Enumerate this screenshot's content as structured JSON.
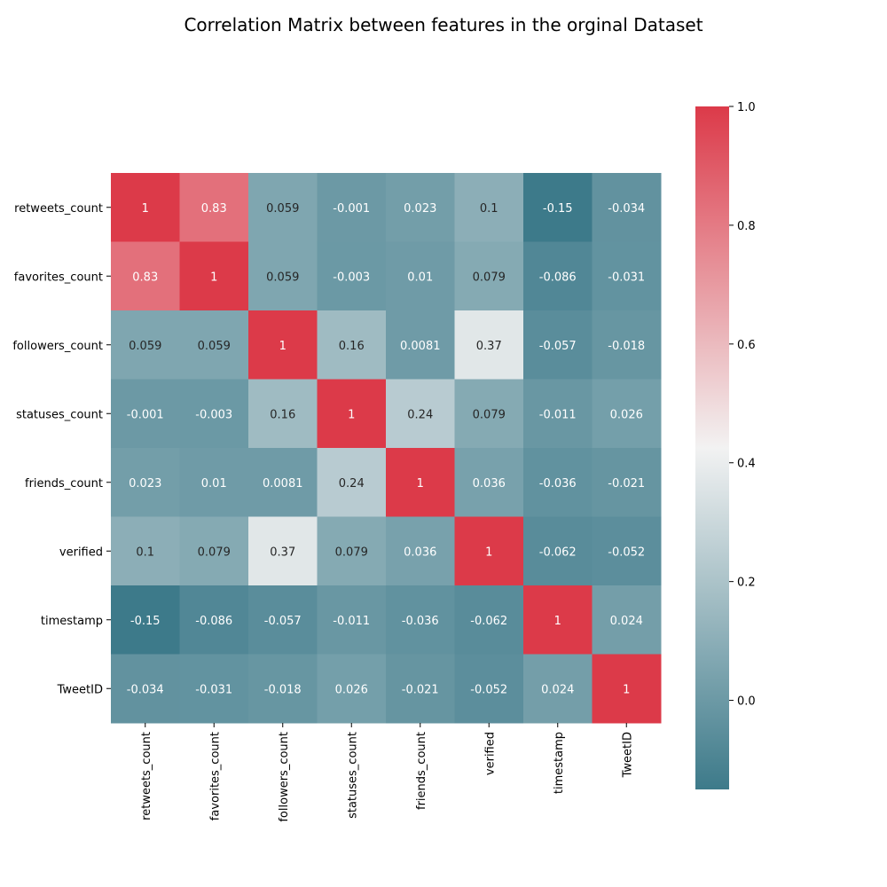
{
  "chart_data": {
    "type": "heatmap",
    "title": "Correlation Matrix between features in the orginal Dataset",
    "row_labels": [
      "retweets_count",
      "favorites_count",
      "followers_count",
      "statuses_count",
      "friends_count",
      "verified",
      "timestamp",
      "TweetID"
    ],
    "col_labels": [
      "retweets_count",
      "favorites_count",
      "followers_count",
      "statuses_count",
      "friends_count",
      "verified",
      "timestamp",
      "TweetID"
    ],
    "values": [
      [
        1,
        0.83,
        0.059,
        -0.001,
        0.023,
        0.1,
        -0.15,
        -0.034
      ],
      [
        0.83,
        1,
        0.059,
        -0.003,
        0.01,
        0.079,
        -0.086,
        -0.031
      ],
      [
        0.059,
        0.059,
        1,
        0.16,
        0.0081,
        0.37,
        -0.057,
        -0.018
      ],
      [
        -0.001,
        -0.003,
        0.16,
        1,
        0.24,
        0.079,
        -0.011,
        0.026
      ],
      [
        0.023,
        0.01,
        0.0081,
        0.24,
        1,
        0.036,
        -0.036,
        -0.021
      ],
      [
        0.1,
        0.079,
        0.37,
        0.079,
        0.036,
        1,
        -0.062,
        -0.052
      ],
      [
        -0.15,
        -0.086,
        -0.057,
        -0.011,
        -0.036,
        -0.062,
        1,
        0.024
      ],
      [
        -0.034,
        -0.031,
        -0.018,
        0.026,
        -0.021,
        -0.052,
        0.024,
        1
      ]
    ],
    "cell_labels": [
      [
        "1",
        "0.83",
        "0.059",
        "-0.001",
        "0.023",
        "0.1",
        "-0.15",
        "-0.034"
      ],
      [
        "0.83",
        "1",
        "0.059",
        "-0.003",
        "0.01",
        "0.079",
        "-0.086",
        "-0.031"
      ],
      [
        "0.059",
        "0.059",
        "1",
        "0.16",
        "0.0081",
        "0.37",
        "-0.057",
        "-0.018"
      ],
      [
        "-0.001",
        "-0.003",
        "0.16",
        "1",
        "0.24",
        "0.079",
        "-0.011",
        "0.026"
      ],
      [
        "0.023",
        "0.01",
        "0.0081",
        "0.24",
        "1",
        "0.036",
        "-0.036",
        "-0.021"
      ],
      [
        "0.1",
        "0.079",
        "0.37",
        "0.079",
        "0.036",
        "1",
        "-0.062",
        "-0.052"
      ],
      [
        "-0.15",
        "-0.086",
        "-0.057",
        "-0.011",
        "-0.036",
        "-0.062",
        "1",
        "0.024"
      ],
      [
        "-0.034",
        "-0.031",
        "-0.018",
        "0.026",
        "-0.021",
        "-0.052",
        "0.024",
        "1"
      ]
    ],
    "colorbar": {
      "range": [
        -0.15,
        1.0
      ],
      "ticks": [
        0.0,
        0.2,
        0.4,
        0.6,
        0.8,
        1.0
      ],
      "tick_labels": [
        "0.0",
        "0.2",
        "0.4",
        "0.6",
        "0.8",
        "1.0"
      ]
    },
    "colormap": {
      "low": "#3d7a8a",
      "mid": "#f2f2f2",
      "high": "#dc3a49"
    }
  }
}
